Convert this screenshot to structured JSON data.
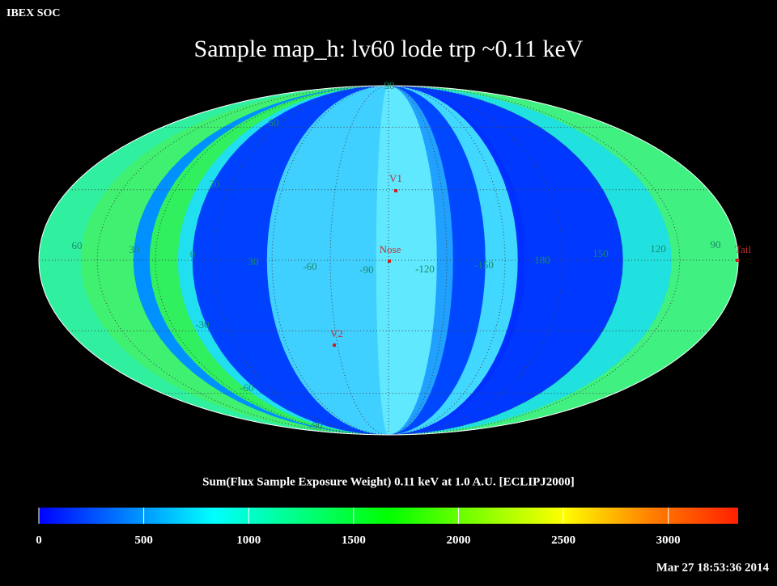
{
  "header": "IBEX SOC",
  "title": "Sample map_h: lv60 lode trp ~0.11 keV",
  "map": {
    "latitude_labels": [
      "90",
      "60",
      "30",
      "-30",
      "-60",
      "-90"
    ],
    "longitude_labels": [
      "60",
      "30",
      "0",
      "30",
      "-60",
      "-90",
      "-120",
      "-150",
      "180",
      "150",
      "120",
      "90"
    ],
    "markers": [
      {
        "label": "V1"
      },
      {
        "label": "Nose"
      },
      {
        "label": "V2"
      },
      {
        "label": "Tail"
      }
    ]
  },
  "colorbar": {
    "label": "Sum(Flux Sample Exposure Weight)  0.11 keV at 1.0 A.U. [ECLIPJ2000]",
    "lim": [
      0,
      3333
    ],
    "ticks": [
      0,
      500,
      1000,
      1500,
      2000,
      2500,
      3000
    ],
    "colors": [
      "#0000ff",
      "#0080ff",
      "#00ffff",
      "#00ff80",
      "#00ff00",
      "#80ff00",
      "#ffff00",
      "#ff8000",
      "#ff2000"
    ]
  },
  "timestamp": "Mar 27 18:53:36 2014"
}
